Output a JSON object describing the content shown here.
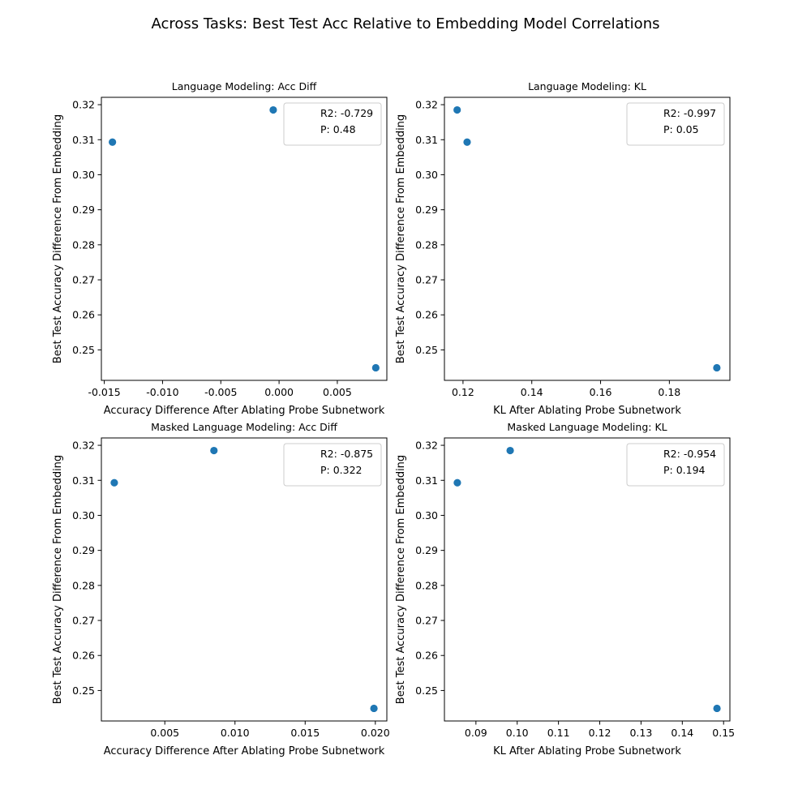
{
  "figure_title": "Across Tasks: Best Test Acc Relative to Embedding Model Correlations",
  "colors": {
    "marker": "#1f77b4",
    "axes": "#000000",
    "legend_border": "#cccccc"
  },
  "chart_data": [
    {
      "type": "scatter",
      "title": "Language Modeling: Acc Diff",
      "xlabel": "Accuracy Difference After Ablating Probe Subnetwork",
      "ylabel": "Best Test Accuracy Difference From Embedding",
      "x": [
        -0.0143,
        -0.0005,
        0.0083
      ],
      "y": [
        0.3093,
        0.3185,
        0.2449
      ],
      "xlim": [
        -0.01525,
        0.00925
      ],
      "ylim": [
        0.2413,
        0.3221
      ],
      "xticks": [
        "-0.015",
        "-0.010",
        "-0.005",
        "0.000",
        "0.005"
      ],
      "xtick_values": [
        -0.015,
        -0.01,
        -0.005,
        0.0,
        0.005
      ],
      "yticks": [
        "0.25",
        "0.26",
        "0.27",
        "0.28",
        "0.29",
        "0.30",
        "0.31",
        "0.32"
      ],
      "ytick_values": [
        0.25,
        0.26,
        0.27,
        0.28,
        0.29,
        0.3,
        0.31,
        0.32
      ],
      "legend": [
        "R2: -0.729",
        "P: 0.48"
      ],
      "legend_loc": "upper right",
      "grid": false
    },
    {
      "type": "scatter",
      "title": "Language Modeling: KL",
      "xlabel": "KL After Ablating Probe Subnetwork",
      "ylabel": "Best Test Accuracy Difference From Embedding",
      "x": [
        0.1183,
        0.1212,
        0.1938
      ],
      "y": [
        0.3185,
        0.3093,
        0.2449
      ],
      "xlim": [
        0.1146,
        0.1976
      ],
      "ylim": [
        0.2413,
        0.3221
      ],
      "xticks": [
        "0.12",
        "0.14",
        "0.16",
        "0.18"
      ],
      "xtick_values": [
        0.12,
        0.14,
        0.16,
        0.18
      ],
      "yticks": [
        "0.25",
        "0.26",
        "0.27",
        "0.28",
        "0.29",
        "0.30",
        "0.31",
        "0.32"
      ],
      "ytick_values": [
        0.25,
        0.26,
        0.27,
        0.28,
        0.29,
        0.3,
        0.31,
        0.32
      ],
      "legend": [
        "R2: -0.997",
        "P: 0.05"
      ],
      "legend_loc": "upper right",
      "grid": false
    },
    {
      "type": "scatter",
      "title": "Masked Language Modeling: Acc Diff",
      "xlabel": "Accuracy Difference After Ablating Probe Subnetwork",
      "ylabel": "Best Test Accuracy Difference From Embedding",
      "x": [
        0.0014,
        0.0085,
        0.0199
      ],
      "y": [
        0.3093,
        0.3185,
        0.2449
      ],
      "xlim": [
        0.00048,
        0.02082
      ],
      "ylim": [
        0.2413,
        0.3221
      ],
      "xticks": [
        "0.005",
        "0.010",
        "0.015",
        "0.020"
      ],
      "xtick_values": [
        0.005,
        0.01,
        0.015,
        0.02
      ],
      "yticks": [
        "0.25",
        "0.26",
        "0.27",
        "0.28",
        "0.29",
        "0.30",
        "0.31",
        "0.32"
      ],
      "ytick_values": [
        0.25,
        0.26,
        0.27,
        0.28,
        0.29,
        0.3,
        0.31,
        0.32
      ],
      "legend": [
        "R2: -0.875",
        "P: 0.322"
      ],
      "legend_loc": "upper right",
      "grid": false
    },
    {
      "type": "scatter",
      "title": "Masked Language Modeling: KL",
      "xlabel": "KL After Ablating Probe Subnetwork",
      "ylabel": "Best Test Accuracy Difference From Embedding",
      "x": [
        0.0855,
        0.0983,
        0.1484
      ],
      "y": [
        0.3093,
        0.3185,
        0.2449
      ],
      "xlim": [
        0.08237,
        0.15153
      ],
      "ylim": [
        0.2413,
        0.3221
      ],
      "xticks": [
        "0.09",
        "0.10",
        "0.11",
        "0.12",
        "0.13",
        "0.14",
        "0.15"
      ],
      "xtick_values": [
        0.09,
        0.1,
        0.11,
        0.12,
        0.13,
        0.14,
        0.15
      ],
      "yticks": [
        "0.25",
        "0.26",
        "0.27",
        "0.28",
        "0.29",
        "0.30",
        "0.31",
        "0.32"
      ],
      "ytick_values": [
        0.25,
        0.26,
        0.27,
        0.28,
        0.29,
        0.3,
        0.31,
        0.32
      ],
      "legend": [
        "R2: -0.954",
        "P: 0.194"
      ],
      "legend_loc": "upper right",
      "grid": false
    }
  ]
}
